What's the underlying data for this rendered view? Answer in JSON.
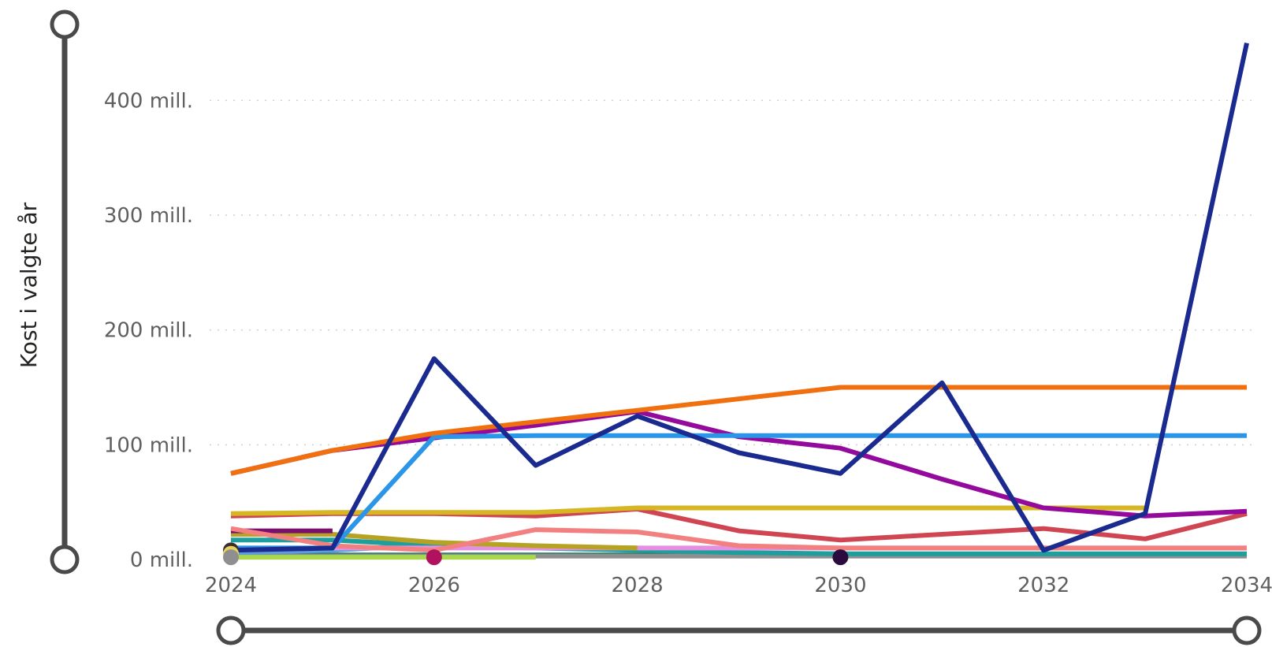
{
  "chart_data": {
    "type": "line",
    "title": "",
    "xlabel": "",
    "ylabel": "Kost i valgte år",
    "x": [
      2024,
      2025,
      2026,
      2027,
      2028,
      2029,
      2030,
      2031,
      2032,
      2033,
      2034
    ],
    "x_ticks": [
      "2024",
      "2026",
      "2028",
      "2030",
      "2032",
      "2034"
    ],
    "y_ticks": [
      "0 mill.",
      "100 mill.",
      "200 mill.",
      "300 mill.",
      "400 mill."
    ],
    "y_tick_values": [
      0,
      100,
      200,
      300,
      400
    ],
    "xlim": [
      2024,
      2034
    ],
    "ylim": [
      0,
      460
    ],
    "grid": "horizontal-dotted",
    "legend": "none",
    "series": [
      {
        "color": "#1a2a8f",
        "values": [
          8,
          10,
          175,
          82,
          125,
          93,
          75,
          154,
          8,
          40,
          450
        ]
      },
      {
        "color": "#f07010",
        "values": [
          75,
          95,
          110,
          120,
          130,
          140,
          150,
          150,
          150,
          150,
          150
        ]
      },
      {
        "color": "#2b96e8",
        "values": [
          10,
          10,
          107,
          108,
          108,
          108,
          108,
          108,
          108,
          108,
          108
        ]
      },
      {
        "color": "#930a9c",
        "values": [
          75,
          95,
          106,
          117,
          129,
          107,
          97,
          70,
          45,
          38,
          42
        ]
      },
      {
        "color": "#d6b622",
        "values": [
          40,
          41,
          41,
          41,
          45,
          45,
          45,
          45,
          45,
          45,
          null
        ]
      },
      {
        "color": "#cf4552",
        "values": [
          38,
          40,
          40,
          38,
          44,
          25,
          17,
          22,
          27,
          18,
          40
        ]
      },
      {
        "color": "#f28080",
        "values": [
          27,
          12,
          8,
          26,
          24,
          12,
          10,
          10,
          10,
          10,
          10
        ]
      },
      {
        "color": "#7a0f6e",
        "values": [
          25,
          25,
          null,
          null,
          null,
          null,
          null,
          null,
          null,
          null,
          null
        ]
      },
      {
        "color": "#b6a223",
        "values": [
          22,
          22,
          15,
          12,
          10,
          null,
          null,
          null,
          null,
          null,
          null
        ]
      },
      {
        "color": "#e58fe0",
        "values": [
          10,
          10,
          10,
          10,
          10,
          10,
          10,
          10,
          10,
          10,
          10
        ]
      },
      {
        "color": "#1f9e9e",
        "values": [
          17,
          17,
          12,
          10,
          8,
          6,
          5,
          5,
          5,
          5,
          5
        ]
      },
      {
        "color": "#5a9ee0",
        "values": [
          6,
          8,
          13,
          11,
          10,
          null,
          null,
          null,
          null,
          null,
          null
        ]
      },
      {
        "color": "#a9d84e",
        "values": [
          2,
          2,
          2,
          2,
          null,
          null,
          null,
          null,
          null,
          null,
          null
        ]
      },
      {
        "color": "#8f8f8f",
        "values": [
          3,
          3,
          3,
          3,
          3,
          3,
          3,
          3,
          3,
          3,
          3
        ]
      },
      {
        "color": "#0e7b5c",
        "values": [
          4,
          4,
          4,
          4,
          4,
          4,
          4,
          4,
          4,
          4,
          4
        ]
      }
    ],
    "markers": [
      {
        "x": 2024,
        "y": 8,
        "color": "#3a2e2e"
      },
      {
        "x": 2024,
        "y": 5,
        "color": "#e8d25b"
      },
      {
        "x": 2024,
        "y": 2,
        "color": "#8f8f8f"
      },
      {
        "x": 2026,
        "y": 2,
        "color": "#b0125f"
      },
      {
        "x": 2030,
        "y": 2,
        "color": "#2b0a3d"
      }
    ]
  },
  "scrollbars": {
    "vertical": {
      "range": [
        0,
        1
      ]
    },
    "horizontal": {
      "range": [
        0,
        1
      ]
    }
  }
}
